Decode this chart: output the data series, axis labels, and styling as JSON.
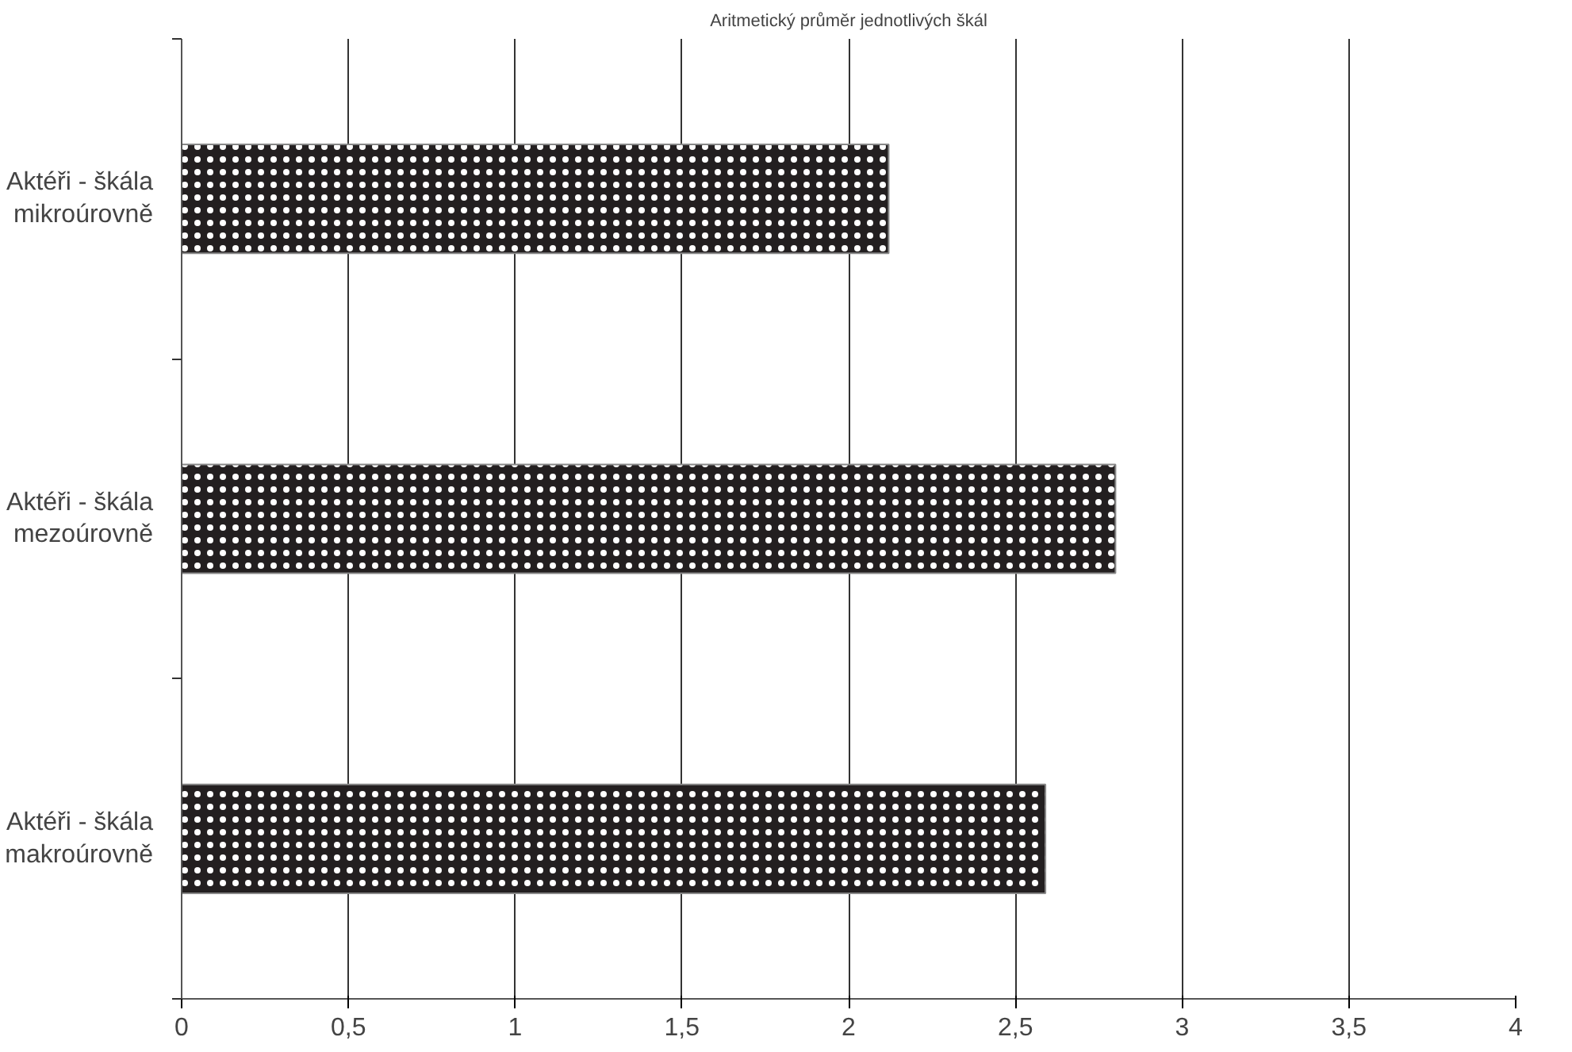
{
  "chart_data": {
    "type": "bar",
    "orientation": "horizontal",
    "title": "Aritmetický průměr jednotlivých škál",
    "categories": [
      "Aktéři - škála mikroúrovně",
      "Aktéři - škála mezoúrovně",
      "Aktéři - škála makroúrovně"
    ],
    "values": [
      2.12,
      2.8,
      2.59
    ],
    "color": "#231f20",
    "xlim": [
      0,
      4
    ],
    "xticks": [
      0,
      {
        "value": 0.5,
        "label": "0,5"
      },
      1,
      {
        "value": 1.5,
        "label": "1,5"
      },
      2,
      {
        "value": 2.5,
        "label": "2,5"
      },
      3,
      {
        "value": 3.5,
        "label": "3,5"
      },
      4
    ],
    "grid": "x"
  }
}
